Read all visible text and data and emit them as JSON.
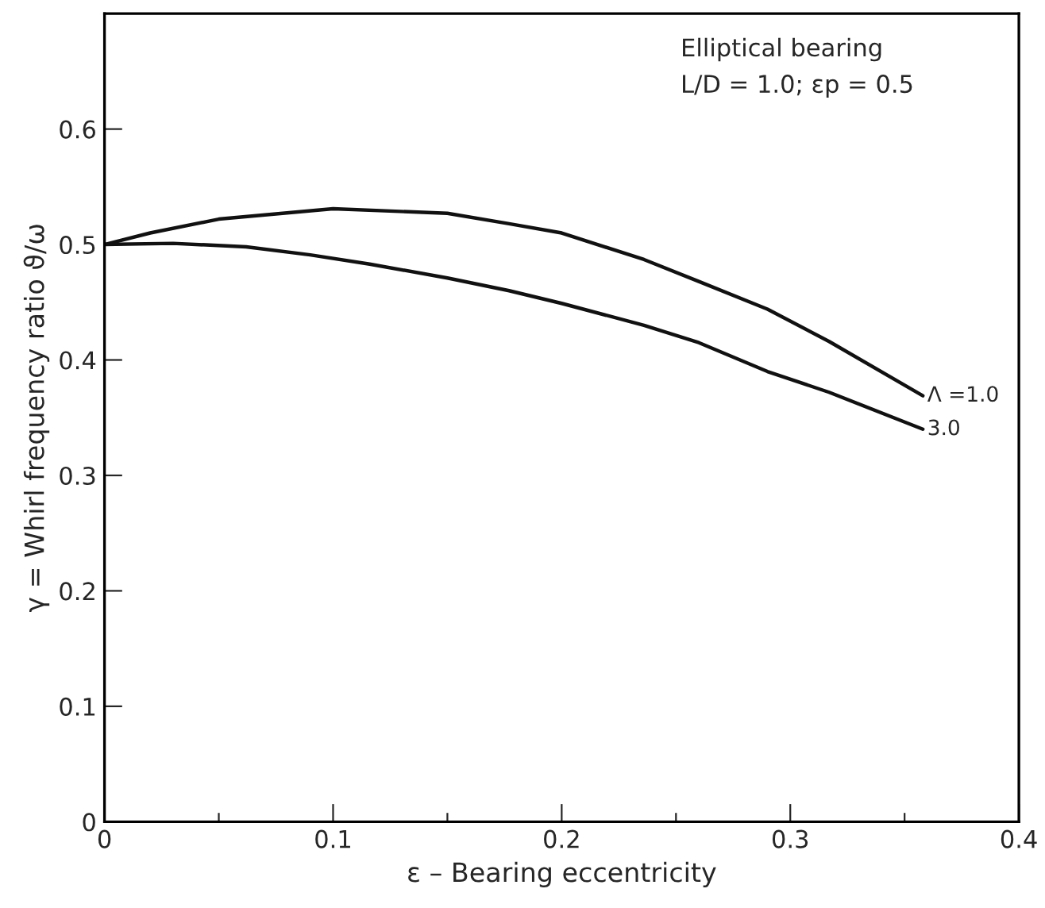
{
  "chart_data": {
    "type": "line",
    "xlabel": "ε – Bearing eccentricity",
    "ylabel": "γ = Whirl frequency ratio ϑ/ω",
    "annotations": [
      "Elliptical bearing",
      "L/D = 1.0; εp = 0.5"
    ],
    "series": [
      {
        "name": "Λ =1.0",
        "color": "#111111",
        "x": [
          0,
          0.02,
          0.05,
          0.1,
          0.15,
          0.177,
          0.2,
          0.236,
          0.26,
          0.29,
          0.317,
          0.358
        ],
        "values": [
          0.5,
          0.51,
          0.522,
          0.531,
          0.527,
          0.518,
          0.51,
          0.487,
          0.468,
          0.444,
          0.416,
          0.369
        ]
      },
      {
        "name": "3.0",
        "color": "#111111",
        "x": [
          0,
          0.03,
          0.062,
          0.09,
          0.116,
          0.15,
          0.177,
          0.2,
          0.236,
          0.26,
          0.29,
          0.317,
          0.358
        ],
        "values": [
          0.5,
          0.501,
          0.498,
          0.491,
          0.483,
          0.471,
          0.46,
          0.449,
          0.43,
          0.415,
          0.39,
          0.372,
          0.34
        ]
      }
    ],
    "xlim": [
      0,
      0.4
    ],
    "xticks": [
      0,
      {
        "value": 0.05,
        "label": null
      },
      0.1,
      {
        "value": 0.15,
        "label": null
      },
      0.2,
      {
        "value": 0.25,
        "label": null
      },
      0.3,
      {
        "value": 0.35,
        "label": null
      },
      0.4
    ],
    "ylim": [
      0,
      0.7
    ],
    "yticks": [
      0,
      0.1,
      0.2,
      0.3,
      0.4,
      0.5,
      0.6
    ],
    "grid": false,
    "legend": false,
    "marker": "none",
    "line_style": "solid"
  }
}
